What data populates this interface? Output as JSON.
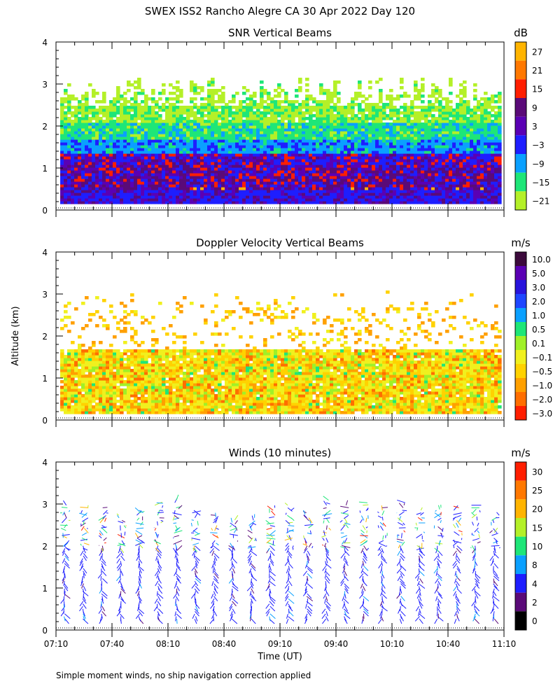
{
  "figure_title": "SWEX ISS2 Rancho Alegre CA  30 Apr 2022 Day 120",
  "y_axis_label": "Altitude (km)",
  "x_axis_label": "Time (UT)",
  "footnote": "Simple moment winds, no ship navigation correction applied",
  "chart_data": [
    {
      "type": "heatmap",
      "title": "SNR Vertical Beams",
      "colorbar_unit": "dB",
      "colorbar_labels": [
        "27",
        "21",
        "15",
        "9",
        "3",
        "−3",
        "−9",
        "−15",
        "−21"
      ],
      "colorbar_colors": [
        "#ffb400",
        "#ff7800",
        "#ff1e00",
        "#5a0a78",
        "#5a00b4",
        "#1e1eff",
        "#0aa0ff",
        "#1ee678",
        "#b4f028"
      ],
      "x_range": [
        "07:10",
        "11:10"
      ],
      "x_ticks": [
        "07:10",
        "07:40",
        "08:10",
        "08:40",
        "09:10",
        "09:40",
        "10:10",
        "10:40",
        "11:10"
      ],
      "y_ticks": [
        "0",
        "1",
        "2",
        "3",
        "4"
      ],
      "ylim": [
        0,
        4
      ],
      "data_height_km": [
        0.15,
        3.2
      ],
      "profile": [
        {
          "altitude_km": 0.3,
          "value_db": -3
        },
        {
          "altitude_km": 0.6,
          "value_db": 3
        },
        {
          "altitude_km": 0.9,
          "value_db": 9
        },
        {
          "altitude_km": 1.2,
          "value_db": 3
        },
        {
          "altitude_km": 1.5,
          "value_db": -3
        },
        {
          "altitude_km": 1.8,
          "value_db": -9
        },
        {
          "altitude_km": 2.1,
          "value_db": -15
        },
        {
          "altitude_km": 2.6,
          "value_db": -21
        }
      ]
    },
    {
      "type": "heatmap",
      "title": "Doppler Velocity Vertical Beams",
      "colorbar_unit": "m/s",
      "colorbar_labels": [
        "10.0",
        "5.0",
        "3.0",
        "2.0",
        "1.0",
        "0.5",
        "0.1",
        "−0.1",
        "−0.5",
        "−1.0",
        "−2.0",
        "−3.0"
      ],
      "colorbar_colors": [
        "#3c0a3c",
        "#5a00b4",
        "#2814dc",
        "#1e46ff",
        "#0aa0ff",
        "#1ee678",
        "#a0f028",
        "#f0f01e",
        "#ffd200",
        "#ffa000",
        "#ff6e00",
        "#ff1e00"
      ],
      "x_range": [
        "07:10",
        "11:10"
      ],
      "x_ticks": [
        "07:10",
        "07:40",
        "08:10",
        "08:40",
        "09:10",
        "09:40",
        "10:10",
        "10:40",
        "11:10"
      ],
      "y_ticks": [
        "0",
        "1",
        "2",
        "3",
        "4"
      ],
      "ylim": [
        0,
        4
      ],
      "data_height_km": [
        0.15,
        3.1
      ],
      "profile": [
        {
          "altitude_km": 0.3,
          "value_ms": -0.1
        },
        {
          "altitude_km": 0.8,
          "value_ms": -0.1
        },
        {
          "altitude_km": 1.3,
          "value_ms": -0.5
        },
        {
          "altitude_km": 1.7,
          "value_ms": -1.0
        }
      ]
    },
    {
      "type": "scatter",
      "title": "Winds (10 minutes)",
      "colorbar_unit": "m/s",
      "colorbar_labels": [
        "30",
        "25",
        "20",
        "15",
        "10",
        "8",
        "4",
        "2",
        "0"
      ],
      "colorbar_colors": [
        "#ff1e00",
        "#ff7800",
        "#ffb400",
        "#b4f028",
        "#1ee678",
        "#0aa0ff",
        "#1e1eff",
        "#5a0a78",
        "#000000"
      ],
      "x_range": [
        "07:10",
        "11:10"
      ],
      "x_ticks": [
        "07:10",
        "07:40",
        "08:10",
        "08:40",
        "09:10",
        "09:40",
        "10:10",
        "10:40",
        "11:10"
      ],
      "y_ticks": [
        "0",
        "1",
        "2",
        "3",
        "4"
      ],
      "ylim": [
        0,
        4
      ],
      "profile_times": [
        "07:15",
        "07:25",
        "07:35",
        "07:45",
        "07:55",
        "08:05",
        "08:15",
        "08:25",
        "08:35",
        "08:45",
        "08:55",
        "09:05",
        "09:15",
        "09:25",
        "09:35",
        "09:45",
        "09:55",
        "10:05",
        "10:15",
        "10:25",
        "10:35",
        "10:45",
        "10:55",
        "11:05"
      ],
      "max_height_km": 3.1
    }
  ]
}
